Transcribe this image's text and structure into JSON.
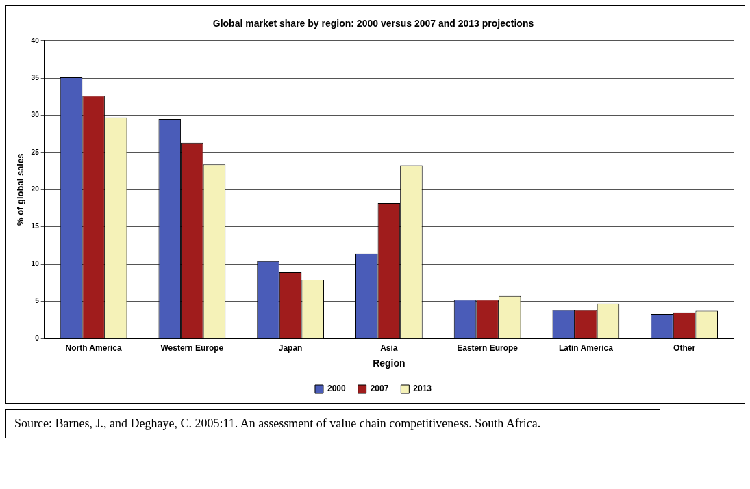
{
  "chart_data": {
    "type": "bar",
    "title": "Global market share by region: 2000 versus 2007 and 2013 projections",
    "xlabel": "Region",
    "ylabel": "% of global sales",
    "categories": [
      "North America",
      "Western Europe",
      "Japan",
      "Asia",
      "Eastern Europe",
      "Latin America",
      "Other"
    ],
    "series": [
      {
        "name": "2000",
        "color": "#4a5cb8",
        "values": [
          35.1,
          29.5,
          10.4,
          11.4,
          5.2,
          3.8,
          3.3
        ]
      },
      {
        "name": "2007",
        "color": "#a01c1c",
        "values": [
          32.6,
          26.3,
          8.9,
          18.2,
          5.2,
          3.8,
          3.5
        ]
      },
      {
        "name": "2013",
        "color": "#f5f2b8",
        "values": [
          29.7,
          23.4,
          7.9,
          23.3,
          5.7,
          4.7,
          3.7
        ]
      }
    ],
    "ylim": [
      0,
      40
    ],
    "yticks": [
      0,
      5,
      10,
      15,
      20,
      25,
      30,
      35,
      40
    ],
    "grid": "y",
    "legend": "bottom",
    "annotations": [
      "Source: Barnes, J., and Deghaye, C. 2005:11. An assessment of value chain competitiveness. South Africa."
    ]
  }
}
